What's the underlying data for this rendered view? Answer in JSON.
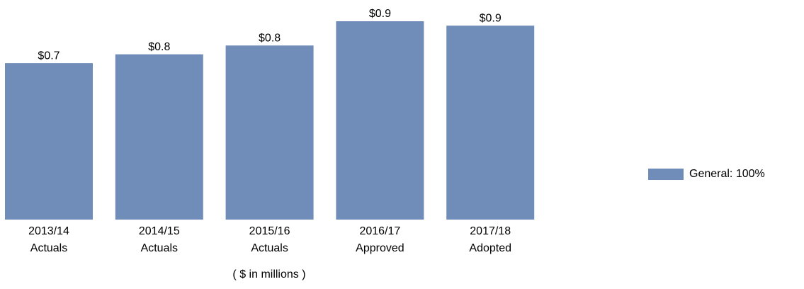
{
  "chart_data": {
    "type": "bar",
    "categories": [
      [
        "2013/14",
        "Actuals"
      ],
      [
        "2014/15",
        "Actuals"
      ],
      [
        "2015/16",
        "Actuals"
      ],
      [
        "2016/17",
        "Approved"
      ],
      [
        "2017/18",
        "Adopted"
      ]
    ],
    "x_label": "( $ in millions )",
    "series": [
      {
        "name": "General: 100%",
        "color": "#6f8db8",
        "values": [
          0.71,
          0.75,
          0.79,
          0.9,
          0.88
        ],
        "value_labels": [
          "$0.7",
          "$0.8",
          "$0.8",
          "$0.9",
          "$0.9"
        ]
      }
    ],
    "legend": "right"
  }
}
